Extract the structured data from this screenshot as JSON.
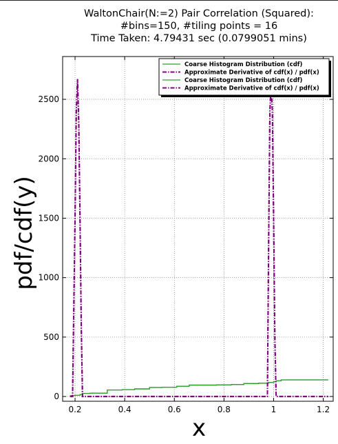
{
  "chart_data": {
    "type": "line",
    "title_lines": [
      "WaltonChair(N:=2) Pair Correlation (Squared):",
      "#bins=150, #tiling points = 16",
      "Time Taken: 4.79431 sec (0.0799051 mins)"
    ],
    "xlabel": "x",
    "ylabel": "pdf/cdf(y)",
    "xlim": [
      0.15,
      1.24
    ],
    "ylim": [
      -40,
      2860
    ],
    "xticks": [
      0.2,
      0.4,
      0.6,
      0.8,
      1.0,
      1.2
    ],
    "xtick_labels": [
      "0.2",
      "0.4",
      "0.6",
      "0.8",
      "1",
      "1.2"
    ],
    "yticks": [
      0,
      500,
      1000,
      1500,
      2000,
      2500
    ],
    "ytick_labels": [
      "0",
      "500",
      "1000",
      "1500",
      "2000",
      "2500"
    ],
    "grid": true,
    "legend_position": "top-right",
    "series": [
      {
        "name": "Coarse Histogram Distribution (cdf)",
        "style": "solid",
        "color": "#2ca02c",
        "x": [
          0.18,
          0.2,
          0.22,
          0.23,
          0.26,
          0.33,
          0.39,
          0.44,
          0.5,
          0.55,
          0.61,
          0.66,
          0.72,
          0.77,
          0.83,
          0.88,
          0.94,
          0.98,
          1.0,
          1.01,
          1.03,
          1.22
        ],
        "y": [
          8,
          10,
          16,
          26,
          28,
          55,
          58,
          64,
          76,
          78,
          86,
          96,
          96,
          98,
          101,
          109,
          112,
          118,
          125,
          132,
          140,
          140
        ]
      },
      {
        "name": "Approximate Derivative of cdf(x) / pdf(x)",
        "style": "dashdot",
        "color": "#800080",
        "x": [
          0.18,
          0.19,
          0.2,
          0.205,
          0.21,
          0.215,
          0.22,
          0.225,
          0.23,
          0.24,
          0.5,
          0.97,
          0.975,
          0.98,
          0.985,
          0.99,
          0.995,
          1.0,
          1.005,
          1.01,
          1.015,
          1.22
        ],
        "y": [
          0,
          0,
          1500,
          2400,
          2670,
          2300,
          1500,
          600,
          0,
          0,
          0,
          0,
          0,
          1300,
          2400,
          2630,
          2400,
          1500,
          500,
          0,
          0,
          0
        ]
      },
      {
        "name": "Coarse Histogram Distribution (cdf)",
        "style": "solid",
        "color": "#2ca02c",
        "x": [
          0.18,
          0.2,
          0.22,
          0.23,
          0.26,
          0.33,
          0.39,
          0.44,
          0.5,
          0.55,
          0.61,
          0.66,
          0.72,
          0.77,
          0.83,
          0.88,
          0.94,
          0.98,
          1.0,
          1.01,
          1.03,
          1.22
        ],
        "y": [
          8,
          10,
          16,
          26,
          28,
          55,
          58,
          64,
          76,
          78,
          86,
          96,
          96,
          98,
          101,
          109,
          112,
          118,
          125,
          132,
          140,
          140
        ]
      },
      {
        "name": "Approximate Derivative of cdf(x) / pdf(x)",
        "style": "dashdot",
        "color": "#800080",
        "x": [
          0.18,
          0.19,
          0.2,
          0.205,
          0.21,
          0.215,
          0.22,
          0.225,
          0.23,
          0.24,
          0.5,
          0.97,
          0.975,
          0.98,
          0.985,
          0.99,
          0.995,
          1.0,
          1.005,
          1.01,
          1.015,
          1.22
        ],
        "y": [
          0,
          0,
          1500,
          2400,
          2670,
          2300,
          1500,
          600,
          0,
          0,
          0,
          0,
          0,
          1300,
          2400,
          2630,
          2400,
          1500,
          500,
          0,
          0,
          0
        ]
      }
    ]
  }
}
